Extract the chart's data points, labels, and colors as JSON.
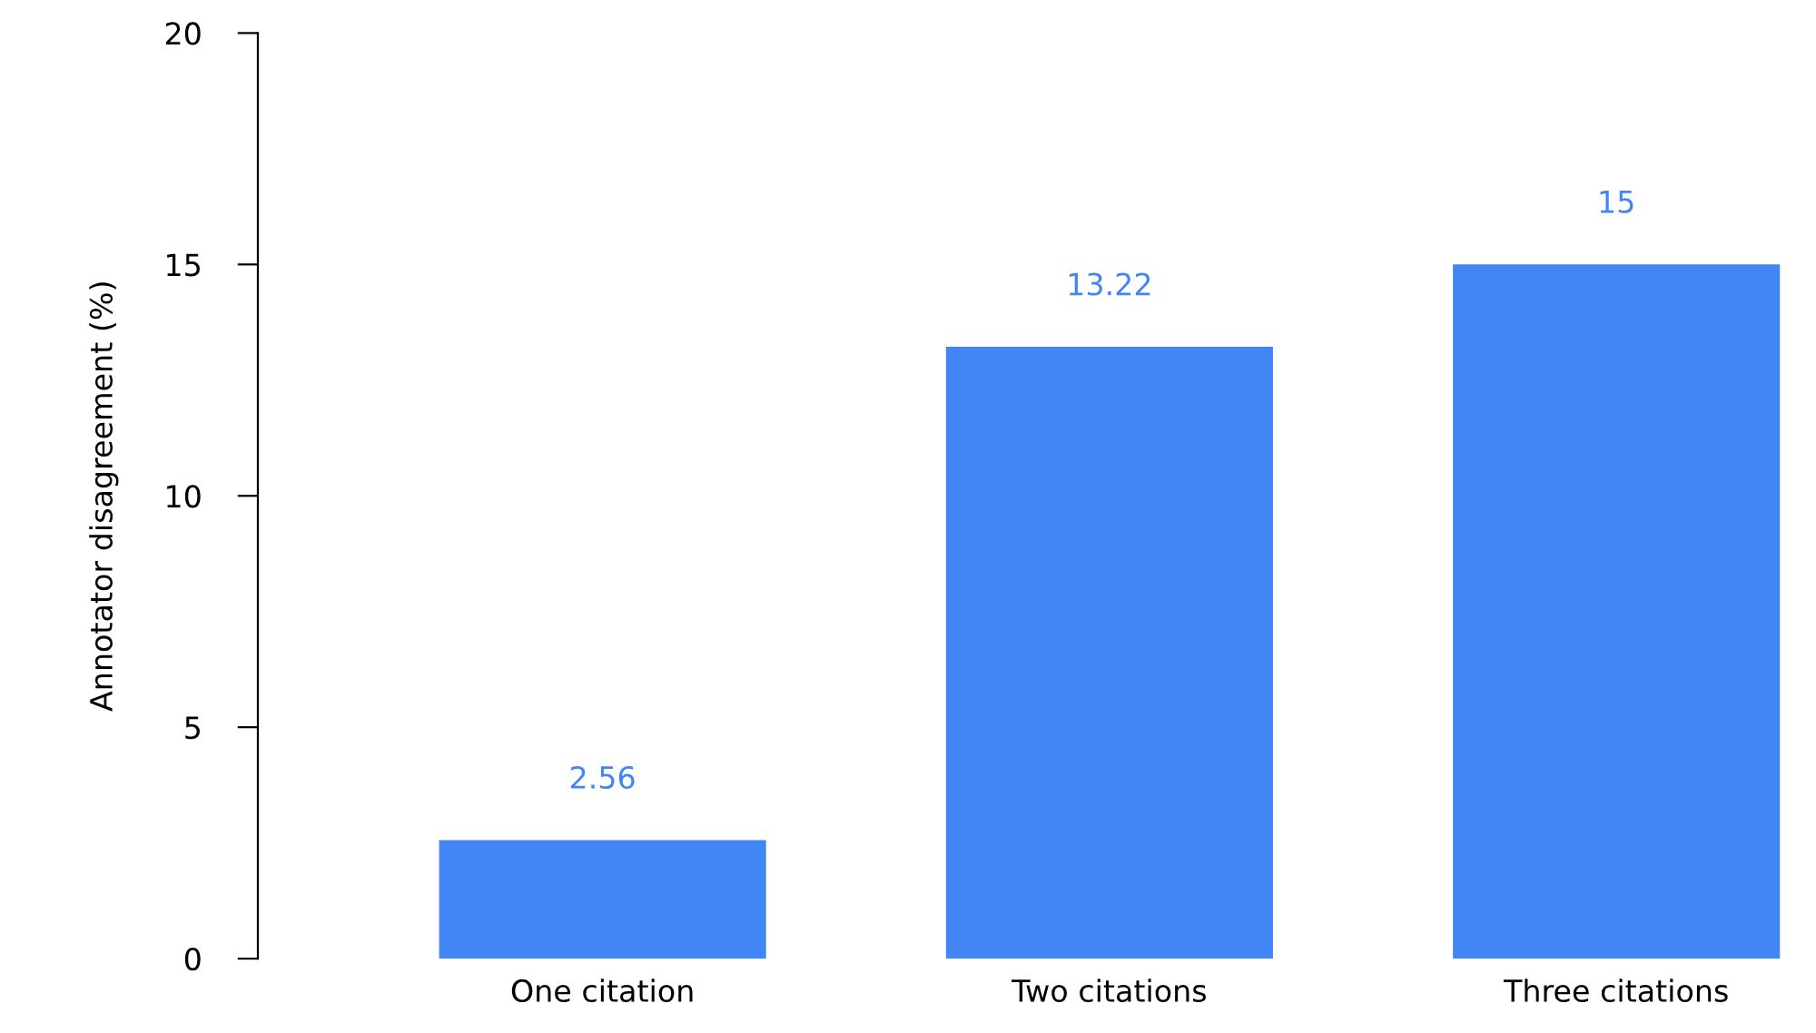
{
  "chart_data": {
    "type": "bar",
    "ylabel": "Annotator disagreement (%)",
    "categories": [
      "One citation",
      "Two citations",
      "Three citations"
    ],
    "values": [
      2.56,
      13.22,
      15
    ],
    "color": "#4285f4",
    "ylim": [
      0,
      20
    ],
    "yticks": [
      0,
      5,
      10,
      15,
      20
    ],
    "grid": false,
    "data_labels": true
  }
}
